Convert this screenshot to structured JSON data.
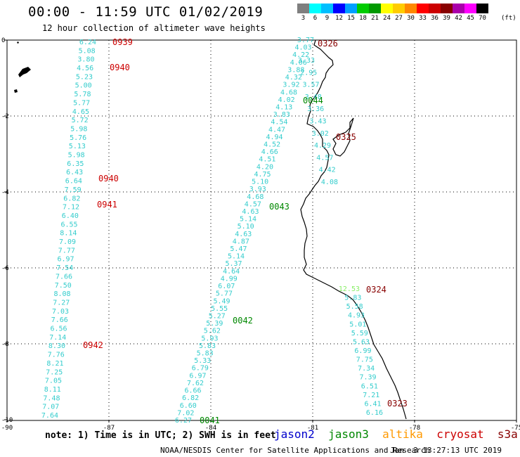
{
  "title": "00:00 - 11:59 UTC 01/02/2019",
  "subtitle": "12 hour collection of altimeter wave heights",
  "colorbar": {
    "colors": [
      "#7f7f7f",
      "#00ffff",
      "#00bfff",
      "#0000ff",
      "#009fff",
      "#00cc00",
      "#009900",
      "#ffff00",
      "#ffcc00",
      "#ff8800",
      "#ff0000",
      "#cc0000",
      "#880000",
      "#aa00aa",
      "#ff00ff",
      "#000000"
    ],
    "labels": [
      "3",
      "6",
      "9",
      "12",
      "15",
      "18",
      "21",
      "24",
      "27",
      "30",
      "33",
      "36",
      "39",
      "42",
      "45",
      "70"
    ],
    "unit": "(ft)"
  },
  "axes": {
    "x_ticks": [
      "-90",
      "-87",
      "-84",
      "-81",
      "-78",
      "-75"
    ],
    "y_ticks": [
      "0",
      "-2",
      "-4",
      "-6",
      "-8",
      "-10"
    ]
  },
  "note": "note: 1) Time is in UTC; 2) SWH is in feet",
  "satellites": [
    {
      "name": "jason2",
      "color": "#0000cc"
    },
    {
      "name": "jason3",
      "color": "#008800"
    },
    {
      "name": "altika",
      "color": "#ff9900"
    },
    {
      "name": "cryosat",
      "color": "#cc0000"
    },
    {
      "name": "s3a",
      "color": "#880000"
    }
  ],
  "footer_left": "NOAA/NESDIS Center for Satellite Applications and Research",
  "footer_right": "Jan  3 13:27:13 UTC 2019",
  "wave_color": "#33cccc",
  "tracks": [
    {
      "values": [
        "6.24",
        "5.08",
        "3.80",
        "4.56",
        "5.23",
        "5.00",
        "5.78",
        "5.77",
        "4.65",
        "5.72",
        "5.98",
        "5.76",
        "5.13",
        "5.98",
        "6.35",
        "6.43",
        "6.64",
        "7.59",
        "6.82",
        "7.12",
        "6.40",
        "6.55",
        "8.14",
        "7.09",
        "7.77",
        "6.97",
        "7.54",
        "7.66",
        "7.50",
        "8.08",
        "7.27",
        "7.03",
        "7.66",
        "6.56",
        "7.14",
        "8.30",
        "7.76",
        "8.21",
        "7.25",
        "7.05",
        "8.11",
        "7.48",
        "7.07",
        "7.64"
      ]
    },
    {
      "values": [
        "3.77",
        "4.03",
        "4.22",
        "4.06",
        "3.88",
        "4.32",
        "3.92",
        "4.68",
        "4.02",
        "4.13",
        "3.83",
        "4.54",
        "4.47",
        "4.94",
        "4.52",
        "4.66",
        "4.51",
        "4.20",
        "4.75",
        "5.10",
        "3.93",
        "4.68",
        "4.57",
        "4.63",
        "5.14",
        "5.10",
        "4.63",
        "4.87",
        "5.47",
        "5.14",
        "5.37",
        "4.64",
        "4.99",
        "6.07",
        "5.77",
        "5.49",
        "5.55",
        "5.27",
        "5.39",
        "5.62",
        "5.93",
        "5.83",
        "5.83",
        "5.33",
        "6.79",
        "6.97",
        "7.62",
        "6.66",
        "6.82",
        "6.60",
        "7.02",
        "6.27"
      ]
    },
    {
      "values": [
        "3.33",
        "2.95",
        "3.57",
        "3.48",
        "3.36",
        "3.43",
        "3.02",
        "4.29",
        "4.57",
        "4.42",
        "4.08"
      ]
    },
    {
      "values": [
        "12.53",
        "5.83",
        "5.58",
        "4.93",
        "5.01",
        "5.59",
        "5.63",
        "6.99",
        "7.75",
        "7.34",
        "7.39",
        "6.51",
        "7.21",
        "6.41",
        "6.16"
      ]
    }
  ],
  "time_labels": [
    {
      "text": "0939",
      "color": "#cc0000"
    },
    {
      "text": "0940",
      "color": "#cc0000"
    },
    {
      "text": "0940",
      "color": "#cc0000"
    },
    {
      "text": "0941",
      "color": "#cc0000"
    },
    {
      "text": "0942",
      "color": "#cc0000"
    },
    {
      "text": "0326",
      "color": "#880000"
    },
    {
      "text": "0044",
      "color": "#008800"
    },
    {
      "text": "0325",
      "color": "#880000"
    },
    {
      "text": "0043",
      "color": "#008800"
    },
    {
      "text": "0324",
      "color": "#880000"
    },
    {
      "text": "0042",
      "color": "#008800"
    },
    {
      "text": "0041",
      "color": "#008800"
    },
    {
      "text": "0323",
      "color": "#880000"
    }
  ]
}
